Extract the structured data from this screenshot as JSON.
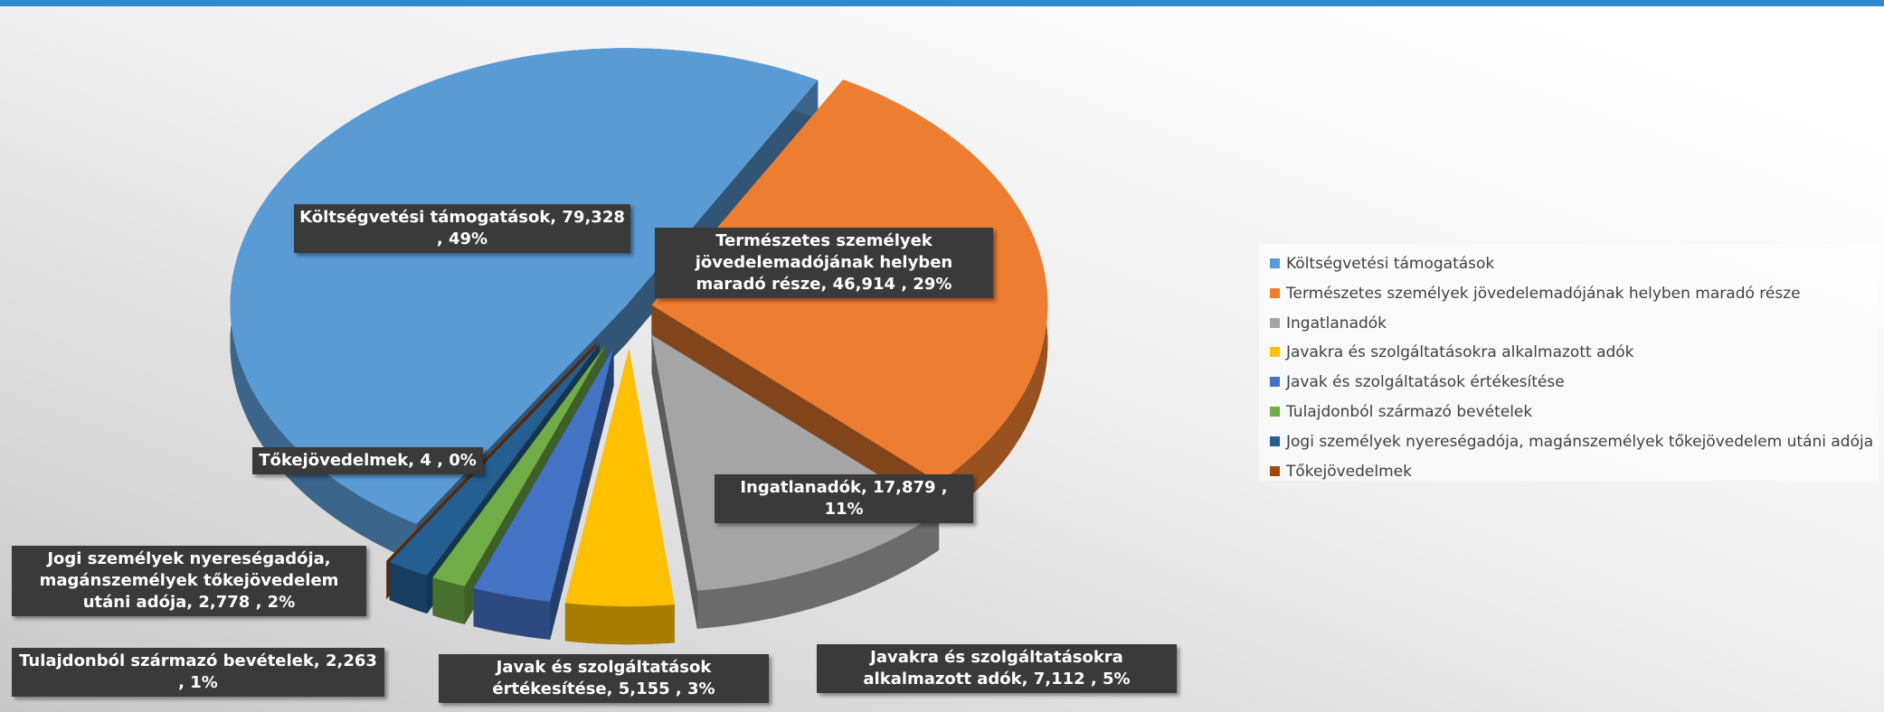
{
  "chart_data": {
    "type": "pie",
    "categories": [
      "Költségvetési támogatások",
      "Természetes személyek jövedelemadójának helyben maradó része",
      "Ingatlanadók",
      "Javakra és szolgáltatásokra alkalmazott adók",
      "Javak és szolgáltatások értékesítése",
      "Tulajdonból származó bevételek",
      "Jogi személyek nyereségadója, magánszemélyek tőkejövedelem utáni adója",
      "Tőkejövedelmek"
    ],
    "values": [
      79328,
      46914,
      17879,
      7112,
      5155,
      2263,
      2778,
      4
    ],
    "data_labels": [
      "Költségvetési támogatások,  79,328 , 49%",
      "Természetes személyek jövedelemadójának helyben maradó része,  46,914 , 29%",
      "Ingatlanadók,  17,879 , 11%",
      "Javakra és szolgáltatásokra  alkalmazott adók,  7,112 , 5%",
      "Javak és szolgáltatások értékesítése,  5,155 , 3%",
      "Tulajdonból  származó  bevételek,  2,263 , 1%",
      "Jogi személyek nyereségadója, magánszemélyek tőkejövedelem utáni adója,  2,778 , 2%",
      "Tőkejövedelmek,  4 , 0%"
    ],
    "colors": [
      "#5b9bd5",
      "#ed7d31",
      "#a5a5a5",
      "#ffc000",
      "#4472c4",
      "#70ad47",
      "#255e91",
      "#9e480e"
    ],
    "legend": "right",
    "three_d": true
  }
}
